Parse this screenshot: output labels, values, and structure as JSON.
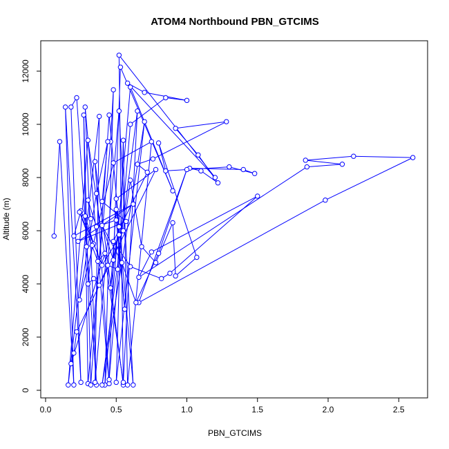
{
  "chart_data": {
    "type": "line",
    "title": "ATOM4 Northbound PBN_GTCIMS",
    "xlabel": "PBN_GTCIMS",
    "ylabel": "Altitude (m)",
    "xlim": [
      0,
      2.7
    ],
    "ylim": [
      0,
      12800
    ],
    "x_ticks": [
      "0.0",
      "0.5",
      "1.0",
      "1.5",
      "2.0",
      "2.5"
    ],
    "y_ticks": [
      "0",
      "2000",
      "4000",
      "6000",
      "8000",
      "10000",
      "12000"
    ],
    "grid": false,
    "series_color": "#0000ff",
    "marker": "open-circle",
    "series": [
      {
        "values": [
          [
            0.06,
            5800
          ],
          [
            0.1,
            9350
          ],
          [
            0.2,
            200
          ],
          [
            0.14,
            10650
          ],
          [
            0.25,
            300
          ],
          [
            0.18,
            10650
          ],
          [
            0.22,
            11000
          ],
          [
            0.36,
            200
          ],
          [
            0.28,
            10650
          ],
          [
            0.45,
            250
          ],
          [
            0.35,
            8600
          ],
          [
            0.55,
            200
          ],
          [
            0.52,
            12600
          ],
          [
            1.2,
            8000
          ],
          [
            0.58,
            11550
          ],
          [
            0.7,
            11200
          ],
          [
            1.0,
            10900
          ],
          [
            0.85,
            11000
          ],
          [
            0.6,
            10000
          ],
          [
            0.45,
            400
          ],
          [
            0.53,
            12150
          ],
          [
            0.9,
            7500
          ],
          [
            0.6,
            11400
          ],
          [
            0.42,
            200
          ],
          [
            0.48,
            11300
          ],
          [
            0.46,
            9350
          ],
          [
            0.3,
            250
          ],
          [
            0.27,
            10350
          ],
          [
            0.32,
            200
          ],
          [
            0.45,
            10350
          ],
          [
            0.62,
            200
          ],
          [
            0.52,
            10500
          ],
          [
            0.35,
            300
          ],
          [
            0.38,
            10300
          ],
          [
            0.16,
            200
          ],
          [
            0.3,
            9400
          ],
          [
            0.55,
            300
          ],
          [
            0.65,
            10500
          ],
          [
            0.4,
            200
          ],
          [
            0.7,
            10100
          ],
          [
            0.5,
            300
          ],
          [
            0.55,
            9400
          ],
          [
            0.58,
            200
          ],
          [
            0.75,
            9350
          ],
          [
            0.48,
            8550
          ],
          [
            0.24,
            3400
          ],
          [
            0.36,
            7400
          ],
          [
            0.44,
            9350
          ],
          [
            0.4,
            7100
          ],
          [
            0.57,
            6350
          ],
          [
            0.23,
            5600
          ],
          [
            0.62,
            7000
          ],
          [
            0.2,
            5800
          ],
          [
            0.25,
            6750
          ],
          [
            0.4,
            4700
          ],
          [
            0.55,
            6000
          ],
          [
            0.6,
            7900
          ],
          [
            0.68,
            5400
          ],
          [
            0.78,
            4800
          ],
          [
            0.9,
            6300
          ],
          [
            0.92,
            4300
          ],
          [
            1.07,
            5000
          ],
          [
            0.8,
            9300
          ],
          [
            0.85,
            8250
          ],
          [
            1.3,
            8400
          ],
          [
            1.48,
            8150
          ],
          [
            1.4,
            8300
          ],
          [
            1.02,
            8350
          ],
          [
            1.1,
            8250
          ],
          [
            1.22,
            7800
          ],
          [
            1.08,
            8850
          ],
          [
            0.92,
            9850
          ],
          [
            1.28,
            10100
          ],
          [
            0.76,
            8700
          ],
          [
            0.65,
            8500
          ],
          [
            0.72,
            8200
          ],
          [
            0.48,
            5600
          ],
          [
            0.6,
            4650
          ],
          [
            0.82,
            4200
          ],
          [
            0.88,
            4400
          ],
          [
            1.5,
            7300
          ],
          [
            0.75,
            5200
          ],
          [
            0.66,
            4250
          ],
          [
            1.85,
            8400
          ],
          [
            2.1,
            8500
          ],
          [
            1.84,
            8650
          ],
          [
            2.18,
            8800
          ],
          [
            2.6,
            8750
          ],
          [
            1.98,
            7150
          ],
          [
            0.66,
            3300
          ],
          [
            1.0,
            8300
          ],
          [
            0.8,
            5150
          ],
          [
            0.64,
            3300
          ],
          [
            0.54,
            4800
          ],
          [
            0.4,
            6200
          ],
          [
            0.48,
            4900
          ],
          [
            0.52,
            6150
          ],
          [
            0.46,
            3850
          ],
          [
            0.5,
            6800
          ],
          [
            0.56,
            3050
          ],
          [
            0.5,
            6400
          ],
          [
            0.36,
            6150
          ],
          [
            0.3,
            7150
          ],
          [
            0.32,
            6450
          ],
          [
            0.28,
            6550
          ],
          [
            0.34,
            5500
          ],
          [
            0.24,
            6700
          ],
          [
            0.37,
            4850
          ],
          [
            0.42,
            5150
          ],
          [
            0.18,
            1000
          ],
          [
            0.2,
            1400
          ],
          [
            0.22,
            2200
          ],
          [
            0.78,
            8300
          ],
          [
            0.5,
            7200
          ],
          [
            0.52,
            5850
          ],
          [
            0.51,
            4550
          ],
          [
            0.44,
            4700
          ],
          [
            0.38,
            3950
          ],
          [
            0.34,
            4200
          ],
          [
            0.3,
            4000
          ],
          [
            0.33,
            5450
          ],
          [
            0.29,
            5400
          ]
        ]
      }
    ]
  }
}
